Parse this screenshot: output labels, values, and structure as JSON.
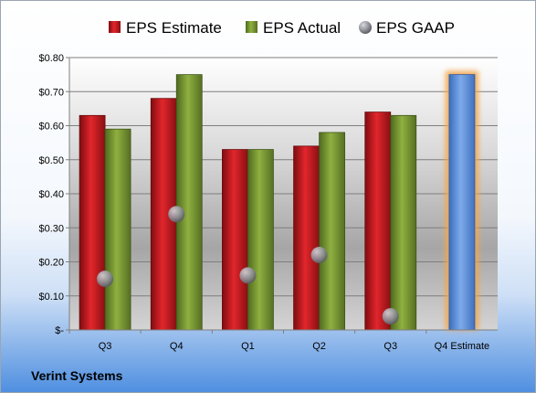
{
  "company_name": "Verint Systems",
  "chart_data": {
    "type": "bar",
    "categories": [
      "Q3",
      "Q4",
      "Q1",
      "Q2",
      "Q3",
      "Q4 Estimate"
    ],
    "series": [
      {
        "name": "EPS Estimate",
        "values": [
          0.63,
          0.68,
          0.53,
          0.54,
          0.64,
          null
        ],
        "color": "#c0161c"
      },
      {
        "name": "EPS Actual",
        "values": [
          0.59,
          0.75,
          0.53,
          0.58,
          0.63,
          null
        ],
        "color": "#7a9a35"
      },
      {
        "name": "EPS GAAP",
        "values": [
          0.15,
          0.34,
          0.16,
          0.22,
          0.04,
          null
        ],
        "color": "#a9a9b2"
      }
    ],
    "estimate_bar": {
      "category": "Q4 Estimate",
      "value": 0.75,
      "color": "#5b8ed6",
      "glow": "#f5a54a"
    },
    "yticks": [
      {
        "value": 0,
        "label": "$-"
      },
      {
        "value": 0.1,
        "label": "$0.10"
      },
      {
        "value": 0.2,
        "label": "$0.20"
      },
      {
        "value": 0.3,
        "label": "$0.30"
      },
      {
        "value": 0.4,
        "label": "$0.40"
      },
      {
        "value": 0.5,
        "label": "$0.50"
      },
      {
        "value": 0.6,
        "label": "$0.60"
      },
      {
        "value": 0.7,
        "label": "$0.70"
      },
      {
        "value": 0.8,
        "label": "$0.80"
      }
    ],
    "ylim": [
      0,
      0.8
    ],
    "grid": true,
    "legend_position": "top",
    "title": "",
    "xlabel": "",
    "ylabel": ""
  }
}
